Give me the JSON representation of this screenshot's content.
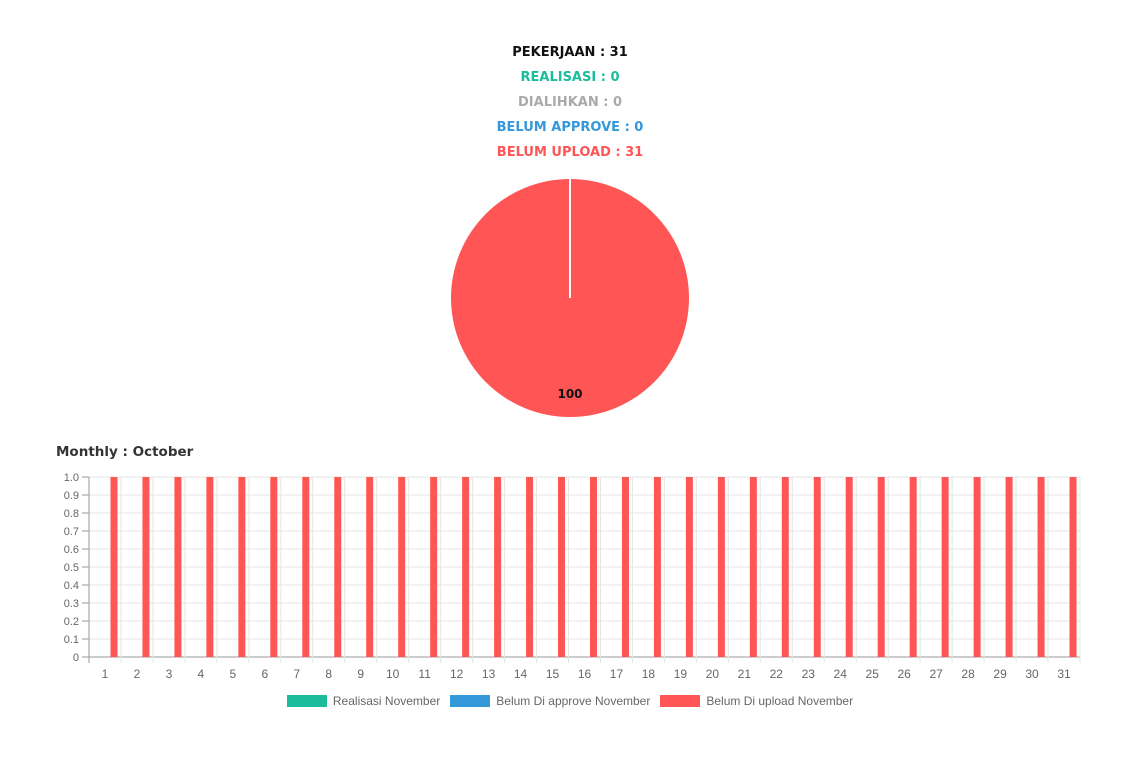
{
  "summary": {
    "pekerjaan": "PEKERJAAN : 31",
    "realisasi": "REALISASI : 0",
    "dialihkan": "DIALIHKAN : 0",
    "belum_approve": "BELUM APPROVE : 0",
    "belum_upload": "BELUM UPLOAD : 31"
  },
  "colors": {
    "pekerjaan": "#111111",
    "realisasi": "#1abc9c",
    "dialihkan": "#aaaaaa",
    "belum_approve": "#3498db",
    "belum_upload": "#ff5555"
  },
  "monthly_title": "Monthly : October",
  "chart_data": [
    {
      "type": "pie",
      "slices": [
        {
          "value": 0,
          "color": "#1abc9c"
        },
        {
          "value": 0,
          "color": "#aaaaaa"
        },
        {
          "value": 0,
          "color": "#3498db"
        },
        {
          "value": 100,
          "color": "#ff5555"
        }
      ],
      "data_labels": [
        "100"
      ]
    },
    {
      "type": "bar",
      "categories": [
        "1",
        "2",
        "3",
        "4",
        "5",
        "6",
        "7",
        "8",
        "9",
        "10",
        "11",
        "12",
        "13",
        "14",
        "15",
        "16",
        "17",
        "18",
        "19",
        "20",
        "21",
        "22",
        "23",
        "24",
        "25",
        "26",
        "27",
        "28",
        "29",
        "30",
        "31"
      ],
      "series": [
        {
          "name": "Realisasi November",
          "color": "#1abc9c",
          "values": [
            0,
            0,
            0,
            0,
            0,
            0,
            0,
            0,
            0,
            0,
            0,
            0,
            0,
            0,
            0,
            0,
            0,
            0,
            0,
            0,
            0,
            0,
            0,
            0,
            0,
            0,
            0,
            0,
            0,
            0,
            0
          ]
        },
        {
          "name": "Belum Di approve November",
          "color": "#3498db",
          "values": [
            0,
            0,
            0,
            0,
            0,
            0,
            0,
            0,
            0,
            0,
            0,
            0,
            0,
            0,
            0,
            0,
            0,
            0,
            0,
            0,
            0,
            0,
            0,
            0,
            0,
            0,
            0,
            0,
            0,
            0,
            0
          ]
        },
        {
          "name": "Belum Di upload November",
          "color": "#ff5555",
          "values": [
            1,
            1,
            1,
            1,
            1,
            1,
            1,
            1,
            1,
            1,
            1,
            1,
            1,
            1,
            1,
            1,
            1,
            1,
            1,
            1,
            1,
            1,
            1,
            1,
            1,
            1,
            1,
            1,
            1,
            1,
            1
          ]
        }
      ],
      "yticks": [
        "0",
        "0.1",
        "0.2",
        "0.3",
        "0.4",
        "0.5",
        "0.6",
        "0.7",
        "0.8",
        "0.9",
        "1.0"
      ],
      "ylim": [
        0,
        1.0
      ],
      "grid": true,
      "legend_position": "bottom"
    }
  ]
}
